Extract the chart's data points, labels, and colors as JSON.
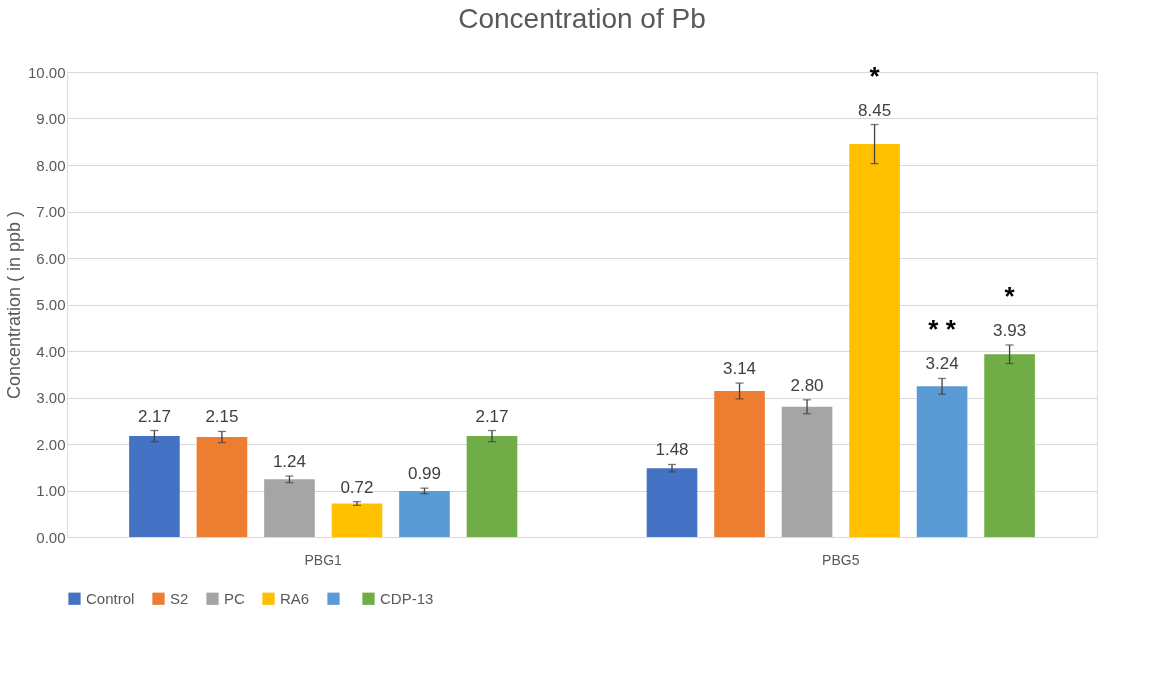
{
  "chart_data": {
    "type": "bar",
    "title": "Concentration of Pb",
    "ylabel": "Concentration ( in ppb )",
    "categories": [
      "PBG1",
      "PBG5"
    ],
    "series": [
      {
        "name": "Control",
        "color": "#4472c4",
        "values": [
          2.17,
          1.48
        ],
        "errors": [
          0.12,
          0.08
        ],
        "value_labels": [
          "2.17",
          "1.48"
        ]
      },
      {
        "name": "S2",
        "color": "#ed7d31",
        "values": [
          2.15,
          3.14
        ],
        "errors": [
          0.12,
          0.17
        ],
        "value_labels": [
          "2.15",
          "3.14"
        ]
      },
      {
        "name": "PC",
        "color": "#a5a5a5",
        "values": [
          1.24,
          2.8
        ],
        "errors": [
          0.07,
          0.15
        ],
        "value_labels": [
          "1.24",
          "2.80"
        ]
      },
      {
        "name": "RA6",
        "color": "#ffc000",
        "values": [
          0.72,
          8.45
        ],
        "errors": [
          0.04,
          0.42
        ],
        "value_labels": [
          "0.72",
          "8.45"
        ]
      },
      {
        "color": "#5b9bd5",
        "values": [
          0.99,
          3.24
        ],
        "errors": [
          0.06,
          0.17
        ],
        "value_labels": [
          "0.99",
          "3.24"
        ]
      },
      {
        "name": "CDP-13",
        "color": "#70ad47",
        "values": [
          2.17,
          3.93
        ],
        "errors": [
          0.12,
          0.2
        ],
        "value_labels": [
          "2.17",
          "3.93"
        ]
      }
    ],
    "ylim": [
      0,
      10
    ],
    "yticks": [
      {
        "value": 0,
        "label": "0.00"
      },
      {
        "value": 1,
        "label": "1.00"
      },
      {
        "value": 2,
        "label": "2.00"
      },
      {
        "value": 3,
        "label": "3.00"
      },
      {
        "value": 4,
        "label": "4.00"
      },
      {
        "value": 5,
        "label": "5.00"
      },
      {
        "value": 6,
        "label": "6.00"
      },
      {
        "value": 7,
        "label": "7.00"
      },
      {
        "value": 8,
        "label": "8.00"
      },
      {
        "value": 9,
        "label": "9.00"
      },
      {
        "value": 10,
        "label": "10.00"
      }
    ],
    "grid": "y",
    "legend": "bottom",
    "annotations": [
      "*",
      "* *",
      "*"
    ]
  }
}
